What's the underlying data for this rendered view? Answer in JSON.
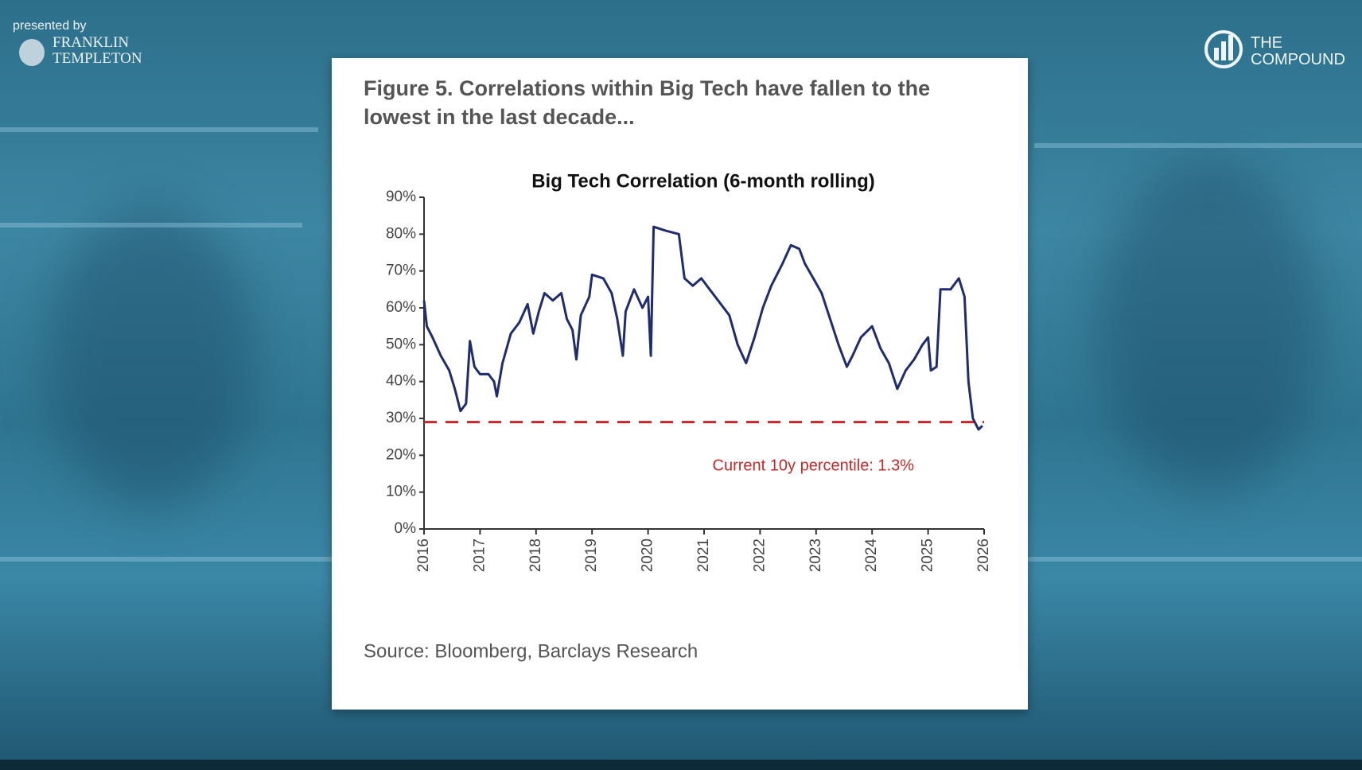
{
  "presenter": {
    "caption": "presented by",
    "name_line1": "FRANKLIN",
    "name_line2": "TEMPLETON"
  },
  "channel": {
    "line1": "THE",
    "line2": "COMPOUND"
  },
  "chart_data": {
    "type": "line",
    "title_line1": "Figure 5. Correlations within Big Tech have fallen to the",
    "title_line2": "lowest in the last decade...",
    "subtitle": "Big Tech Correlation (6-month rolling)",
    "source": "Source: Bloomberg, Barclays Research",
    "x": [
      2016.0,
      2016.05,
      2016.15,
      2016.3,
      2016.45,
      2016.55,
      2016.65,
      2016.75,
      2016.82,
      2016.9,
      2017.0,
      2017.15,
      2017.25,
      2017.3,
      2017.4,
      2017.55,
      2017.7,
      2017.85,
      2017.95,
      2018.05,
      2018.15,
      2018.3,
      2018.45,
      2018.55,
      2018.65,
      2018.72,
      2018.8,
      2018.95,
      2019.0,
      2019.2,
      2019.35,
      2019.45,
      2019.55,
      2019.6,
      2019.75,
      2019.9,
      2020.0,
      2020.05,
      2020.1,
      2020.3,
      2020.55,
      2020.65,
      2020.8,
      2020.95,
      2021.1,
      2021.25,
      2021.45,
      2021.6,
      2021.75,
      2021.9,
      2022.05,
      2022.2,
      2022.4,
      2022.55,
      2022.7,
      2022.8,
      2022.95,
      2023.1,
      2023.25,
      2023.4,
      2023.55,
      2023.65,
      2023.8,
      2024.0,
      2024.15,
      2024.3,
      2024.45,
      2024.6,
      2024.75,
      2024.9,
      2025.0,
      2025.05,
      2025.15,
      2025.22,
      2025.4,
      2025.55,
      2025.65,
      2025.72,
      2025.8,
      2025.9,
      2025.97
    ],
    "series": [
      {
        "name": "Big Tech Correlation",
        "color": "#1f2d6e",
        "values": [
          62,
          55,
          52,
          47,
          43,
          38,
          32,
          34,
          51,
          44,
          42,
          42,
          40,
          36,
          45,
          53,
          56,
          61,
          53,
          59,
          64,
          62,
          64,
          57,
          54,
          46,
          58,
          63,
          69,
          68,
          64,
          57,
          47,
          59,
          65,
          60,
          63,
          47,
          82,
          81,
          80,
          68,
          66,
          68,
          65,
          62,
          58,
          50,
          45,
          52,
          60,
          66,
          72,
          77,
          76,
          72,
          68,
          64,
          57,
          50,
          44,
          47,
          52,
          55,
          49,
          45,
          38,
          43,
          46,
          50,
          52,
          43,
          44,
          65,
          65,
          68,
          63,
          40,
          30,
          27,
          28
        ]
      }
    ],
    "reference_line": {
      "value": 29,
      "color": "#c62828"
    },
    "annotation": "Current 10y percentile: 1.3%",
    "xlim": [
      2016,
      2026
    ],
    "xticks": [
      2016,
      2017,
      2018,
      2019,
      2020,
      2021,
      2022,
      2023,
      2024,
      2025,
      2026
    ],
    "ylim": [
      0,
      90
    ],
    "yticks": [
      {
        "value": 0,
        "label": "0%"
      },
      {
        "value": 10,
        "label": "10%"
      },
      {
        "value": 20,
        "label": "20%"
      },
      {
        "value": 30,
        "label": "30%"
      },
      {
        "value": 40,
        "label": "40%"
      },
      {
        "value": 50,
        "label": "50%"
      },
      {
        "value": 60,
        "label": "60%"
      },
      {
        "value": 70,
        "label": "70%"
      },
      {
        "value": 80,
        "label": "80%"
      },
      {
        "value": 90,
        "label": "90%"
      }
    ],
    "grid": false
  }
}
